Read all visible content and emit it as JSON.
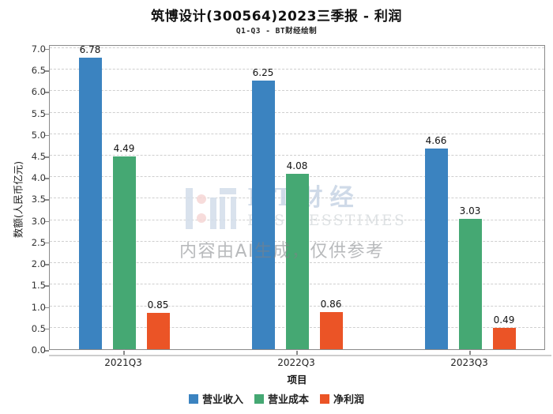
{
  "chart_data": {
    "type": "bar",
    "title": "筑博设计(300564)2023三季报 - 利润",
    "subtitle": "Q1-Q3 - BT财经绘制",
    "xlabel": "项目",
    "ylabel": "数额(人民币亿元)",
    "categories": [
      "2021Q3",
      "2022Q3",
      "2023Q3"
    ],
    "series": [
      {
        "name": "营业收入",
        "color": "#3b83c0",
        "values": [
          6.78,
          6.25,
          4.66
        ]
      },
      {
        "name": "营业成本",
        "color": "#45a873",
        "values": [
          4.49,
          4.08,
          3.03
        ]
      },
      {
        "name": "净利润",
        "color": "#eb5426",
        "values": [
          0.85,
          0.86,
          0.49
        ]
      }
    ],
    "ylim": [
      0,
      7
    ],
    "ytick_step": 0.5,
    "grid": true,
    "grid_style": "dashed",
    "legend_position": "bottom",
    "value_labels_decimals": 2
  },
  "watermark": {
    "bt_text": "BT财经",
    "business_text": "BUSINESSTIMES",
    "ai_notice": "内容由AI生成，仅供参考",
    "logo_bar_color": "#d3deea",
    "logo_dot_color": "#f6d7d5"
  },
  "style_colors": {
    "axis_spine": "#8a8a8a",
    "gridline": "#cfcfcf",
    "tick_label": "#333333",
    "background": "#ffffff"
  }
}
